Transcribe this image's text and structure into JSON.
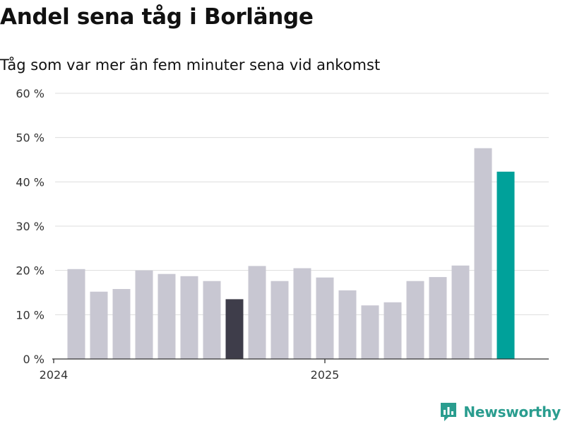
{
  "header": {
    "title": "Andel sena tåg i Borlänge",
    "subtitle": "Tåg som var mer än fem minuter sena vid ankomst"
  },
  "brand": {
    "name": "Newsworthy",
    "icon": "bar-chart-speech-bubble-icon",
    "color": "#2a9d8f"
  },
  "colors": {
    "default_bar": "#c8c7d2",
    "highlight_dark": "#3e3d4a",
    "highlight_current": "#00a19a",
    "grid": "#dddddd",
    "axis": "#333333"
  },
  "chart_data": {
    "type": "bar",
    "title": "Andel sena tåg i Borlänge",
    "subtitle": "Tåg som var mer än fem minuter sena vid ankomst",
    "xlabel": "",
    "ylabel": "",
    "ylim": [
      0,
      60
    ],
    "y_ticks": [
      0,
      10,
      20,
      30,
      40,
      50,
      60
    ],
    "y_tick_labels": [
      "0 %",
      "10 %",
      "20 %",
      "30 %",
      "40 %",
      "50 %",
      "60 %"
    ],
    "x_tick_labels": [
      {
        "label": "2024",
        "index": 0
      },
      {
        "label": "2025",
        "index": 12
      }
    ],
    "values": [
      null,
      20.3,
      15.2,
      15.8,
      20.0,
      19.2,
      18.7,
      17.6,
      13.5,
      21.0,
      17.6,
      20.5,
      18.4,
      15.5,
      12.1,
      12.8,
      17.6,
      18.5,
      21.1,
      47.6,
      42.3
    ],
    "highlight": {
      "8": "dark",
      "20": "current"
    },
    "grid": true
  }
}
